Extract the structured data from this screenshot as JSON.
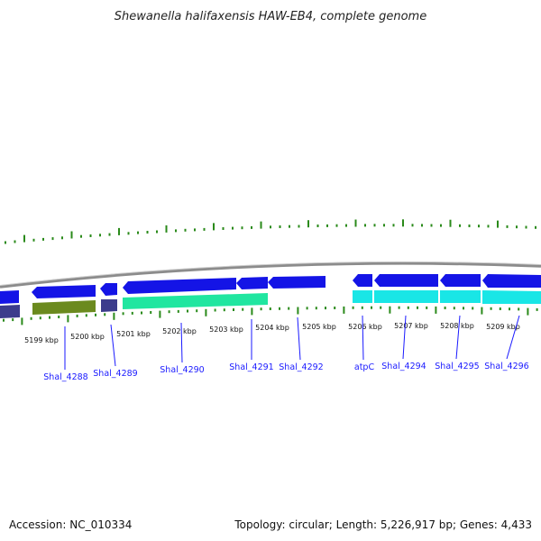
{
  "title": "Shewanella halifaxensis HAW-EB4, complete genome",
  "footer": {
    "accession": "Accession: NC_010334",
    "summary": "Topology: circular; Length: 5,226,917 bp; Genes: 4,433"
  },
  "colors": {
    "backbone": "#8c8c8c",
    "tick_green": "#2a8a1a",
    "forward_gene": "#1414e6",
    "cyan_gene": "#19e6e6",
    "green_gene": "#20e6a0",
    "olive_gene": "#6b8a1e",
    "slate_gene": "#3c3c8c",
    "label_blue": "#1a1aff"
  },
  "kbp_labels": [
    "5199 kbp",
    "5200 kbp",
    "5201 kbp",
    "5202 kbp",
    "5203 kbp",
    "5204 kbp",
    "5205 kbp",
    "5206 kbp",
    "5207 kbp",
    "5208 kbp",
    "5209 kbp"
  ],
  "genes": [
    {
      "label": "Shal_4288",
      "strand": "reverse",
      "color": "olive"
    },
    {
      "label": "Shal_4289",
      "strand": "reverse",
      "color": "slate"
    },
    {
      "label": "Shal_4290",
      "strand": "reverse",
      "color": "green"
    },
    {
      "label": "Shal_4291",
      "strand": "forward",
      "color": "blue"
    },
    {
      "label": "Shal_4292",
      "strand": "forward",
      "color": "blue"
    },
    {
      "label": "atpC",
      "strand": "forward",
      "color": "blue"
    },
    {
      "label": "Shal_4294",
      "strand": "forward",
      "color": "blue"
    },
    {
      "label": "Shal_4295",
      "strand": "forward",
      "color": "blue"
    },
    {
      "label": "Shal_4296",
      "strand": "forward",
      "color": "blue"
    }
  ]
}
